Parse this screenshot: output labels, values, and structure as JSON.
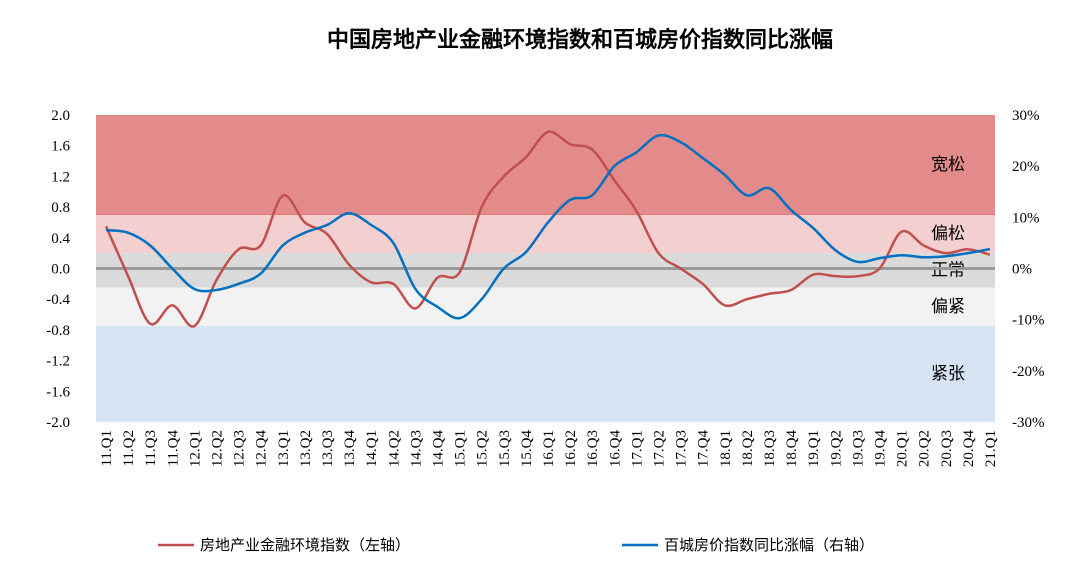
{
  "chart_data": {
    "type": "line",
    "title": "中国房地产业金融环境指数和百城房价指数同比涨幅",
    "categories": [
      "11.Q1",
      "11.Q2",
      "11.Q3",
      "11.Q4",
      "12.Q1",
      "12.Q2",
      "12.Q3",
      "12.Q4",
      "13.Q1",
      "13.Q2",
      "13.Q3",
      "13.Q4",
      "14.Q1",
      "14.Q2",
      "14.Q3",
      "14.Q4",
      "15.Q1",
      "15.Q2",
      "15.Q3",
      "15.Q4",
      "16.Q1",
      "16.Q2",
      "16.Q3",
      "16.Q4",
      "17.Q1",
      "17.Q2",
      "17.Q3",
      "17.Q4",
      "18.Q1",
      "18.Q2",
      "18.Q3",
      "18.Q4",
      "19.Q1",
      "19.Q2",
      "19.Q3",
      "19.Q4",
      "20.Q1",
      "20.Q2",
      "20.Q3",
      "20.Q4",
      "21.Q1"
    ],
    "series": [
      {
        "name": "房地产业金融环境指数（左轴）",
        "color": "#c0504d",
        "axis": "y",
        "values": [
          0.55,
          -0.1,
          -0.72,
          -0.48,
          -0.75,
          -0.15,
          0.25,
          0.3,
          0.95,
          0.6,
          0.45,
          0.05,
          -0.18,
          -0.2,
          -0.52,
          -0.12,
          -0.05,
          0.8,
          1.2,
          1.45,
          1.78,
          1.62,
          1.55,
          1.15,
          0.75,
          0.2,
          0.0,
          -0.2,
          -0.48,
          -0.4,
          -0.33,
          -0.28,
          -0.08,
          -0.1,
          -0.1,
          0.0,
          0.48,
          0.3,
          0.2,
          0.25,
          0.18
        ]
      },
      {
        "name": "百城房价指数同比涨幅（右轴）",
        "color": "#0070c0",
        "axis": "y2",
        "values": [
          7.5,
          7,
          4.5,
          0,
          -4,
          -4.2,
          -3,
          -1,
          4.5,
          7,
          8.5,
          10.8,
          8.5,
          5,
          -4,
          -7.5,
          -9.7,
          -6,
          0,
          3.2,
          9,
          13.4,
          14.3,
          20,
          22.7,
          26,
          24.7,
          21.6,
          18.3,
          14.3,
          15.7,
          11.4,
          7.9,
          3.6,
          1.3,
          2,
          2.6,
          2.2,
          2.4,
          3,
          3.8
        ]
      }
    ],
    "ylim": [
      -2,
      2
    ],
    "yticks": [
      {
        "value": 2,
        "label": "2.0"
      },
      1.6,
      1.2,
      0.8,
      0.4,
      {
        "value": 0,
        "label": "0.0"
      },
      -0.4,
      -0.8,
      -1.2,
      -1.6,
      {
        "value": -2,
        "label": "-2.0"
      }
    ],
    "y2lim": [
      -30,
      30
    ],
    "y2ticks": [
      {
        "value": 30,
        "label": "30%"
      },
      {
        "value": 20,
        "label": "20%"
      },
      {
        "value": 10,
        "label": "10%"
      },
      {
        "value": 0,
        "label": "0%"
      },
      {
        "value": -10,
        "label": "-10%"
      },
      {
        "value": -20,
        "label": "-20%"
      },
      {
        "value": -30,
        "label": "-30%"
      }
    ],
    "bands": [
      {
        "label": "宽松",
        "from": 0.7,
        "to": 2,
        "color": "#e28b8a"
      },
      {
        "label": "偏松",
        "from": 0.2,
        "to": 0.7,
        "color": "#f4cfcf"
      },
      {
        "label": "正常",
        "from": -0.25,
        "to": 0.2,
        "color": "#dadada"
      },
      {
        "label": "偏紧",
        "from": -0.75,
        "to": -0.25,
        "color": "#f2f2f2"
      },
      {
        "label": "紧张",
        "from": -2,
        "to": -0.75,
        "color": "#d6e3f2"
      }
    ]
  }
}
